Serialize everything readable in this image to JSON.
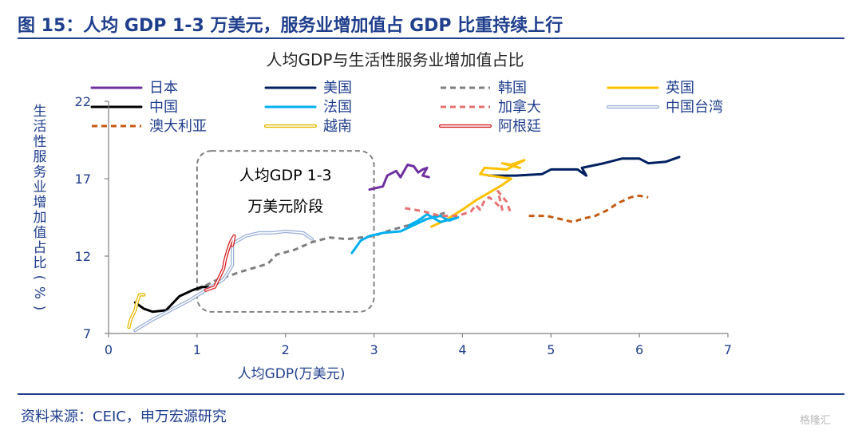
{
  "figure": {
    "title": "图 15：人均 GDP 1-3 万美元，服务业增加值占 GDP 比重持续上行",
    "source": "资料来源：CEIC，申万宏源研究",
    "watermark": "格隆汇"
  },
  "colors": {
    "header_blue": "#1f3e8c",
    "axis_text": "#1f3e8c",
    "box_border": "#808080"
  },
  "chart_data": {
    "type": "line",
    "title": "人均GDP与生活性服务业增加值占比",
    "xlabel": "人均GDP(万美元)",
    "ylabel": "生活性服务业增加值占比(%)",
    "xlim": [
      0,
      7
    ],
    "ylim": [
      7,
      22
    ],
    "xticks": [
      "0",
      "1",
      "2",
      "3",
      "4",
      "5",
      "6",
      "7"
    ],
    "yticks": [
      "7",
      "12",
      "17",
      "22"
    ],
    "grid": false,
    "legend_position": "top",
    "annotation": {
      "line1": "人均GDP 1-3",
      "line2": "万美元阶段",
      "x_range": [
        1.0,
        3.0
      ],
      "y_range": [
        8.4,
        18.8
      ]
    },
    "series": [
      {
        "name": "日本",
        "color": "#7030a0",
        "style": "solid",
        "points": [
          [
            2.95,
            16.3
          ],
          [
            3.1,
            16.5
          ],
          [
            3.15,
            17.2
          ],
          [
            3.25,
            17.5
          ],
          [
            3.3,
            17.1
          ],
          [
            3.38,
            17.9
          ],
          [
            3.45,
            17.8
          ],
          [
            3.5,
            17.4
          ],
          [
            3.55,
            17.6
          ],
          [
            3.6,
            17.7
          ],
          [
            3.55,
            17.2
          ],
          [
            3.62,
            17.1
          ]
        ]
      },
      {
        "name": "美国",
        "color": "#002060",
        "style": "solid",
        "points": [
          [
            4.3,
            17.2
          ],
          [
            4.6,
            17.2
          ],
          [
            4.9,
            17.3
          ],
          [
            5.0,
            17.6
          ],
          [
            5.3,
            17.6
          ],
          [
            5.4,
            17.2
          ],
          [
            5.35,
            17.7
          ],
          [
            5.6,
            18.0
          ],
          [
            5.8,
            18.3
          ],
          [
            6.0,
            18.3
          ],
          [
            6.1,
            18.0
          ],
          [
            6.3,
            18.1
          ],
          [
            6.45,
            18.4
          ]
        ]
      },
      {
        "name": "韩国",
        "color": "#7f7f7f",
        "style": "dash",
        "points": [
          [
            1.0,
            9.8
          ],
          [
            1.2,
            10.4
          ],
          [
            1.5,
            11.0
          ],
          [
            1.8,
            11.5
          ],
          [
            1.9,
            12.1
          ],
          [
            2.1,
            12.4
          ],
          [
            2.3,
            12.9
          ],
          [
            2.5,
            13.2
          ],
          [
            2.7,
            13.1
          ],
          [
            3.0,
            13.3
          ],
          [
            3.2,
            13.7
          ],
          [
            3.4,
            14.0
          ],
          [
            3.6,
            14.4
          ],
          [
            3.8,
            14.8
          ]
        ]
      },
      {
        "name": "英国",
        "color": "#ffc000",
        "style": "solid",
        "points": [
          [
            3.65,
            13.9
          ],
          [
            3.8,
            14.3
          ],
          [
            4.0,
            15.0
          ],
          [
            4.15,
            15.6
          ],
          [
            4.3,
            16.1
          ],
          [
            4.45,
            16.6
          ],
          [
            4.55,
            17.0
          ],
          [
            4.2,
            17.3
          ],
          [
            4.25,
            17.7
          ],
          [
            4.5,
            17.6
          ],
          [
            4.7,
            18.2
          ],
          [
            4.55,
            17.9
          ],
          [
            4.45,
            18.0
          ],
          [
            4.65,
            17.7
          ]
        ]
      },
      {
        "name": "中国",
        "color": "#000000",
        "style": "solid",
        "points": [
          [
            0.3,
            9.0
          ],
          [
            0.4,
            8.6
          ],
          [
            0.5,
            8.4
          ],
          [
            0.65,
            8.5
          ],
          [
            0.8,
            9.4
          ],
          [
            0.95,
            9.8
          ],
          [
            1.05,
            10.0
          ],
          [
            1.2,
            10.0
          ]
        ]
      },
      {
        "name": "法国",
        "color": "#00b0f0",
        "style": "solid",
        "points": [
          [
            2.75,
            12.2
          ],
          [
            2.85,
            13.0
          ],
          [
            2.95,
            13.3
          ],
          [
            3.1,
            13.5
          ],
          [
            3.3,
            13.6
          ],
          [
            3.45,
            14.0
          ],
          [
            3.6,
            14.4
          ],
          [
            3.75,
            14.6
          ],
          [
            3.85,
            14.3
          ],
          [
            3.95,
            14.5
          ],
          [
            3.75,
            14.2
          ],
          [
            3.6,
            14.7
          ],
          [
            3.5,
            14.3
          ],
          [
            3.4,
            14.0
          ]
        ]
      },
      {
        "name": "加拿大",
        "color": "#e87272",
        "style": "dash",
        "points": [
          [
            3.35,
            15.1
          ],
          [
            3.55,
            14.9
          ],
          [
            3.75,
            14.6
          ],
          [
            3.95,
            14.6
          ],
          [
            4.1,
            14.9
          ],
          [
            4.15,
            15.3
          ],
          [
            4.2,
            15.0
          ],
          [
            4.25,
            15.6
          ],
          [
            4.3,
            15.8
          ],
          [
            4.35,
            15.6
          ],
          [
            4.45,
            15.0
          ],
          [
            4.4,
            16.2
          ],
          [
            4.5,
            15.5
          ],
          [
            4.55,
            14.7
          ]
        ]
      },
      {
        "name": "中国台湾",
        "color": "#9bb1d6",
        "style": "double",
        "points": [
          [
            0.3,
            7.2
          ],
          [
            0.5,
            7.9
          ],
          [
            0.7,
            8.5
          ],
          [
            0.9,
            9.1
          ],
          [
            1.1,
            9.8
          ],
          [
            1.3,
            10.5
          ],
          [
            1.4,
            11.4
          ],
          [
            1.4,
            12.8
          ],
          [
            1.55,
            13.3
          ],
          [
            1.7,
            13.5
          ],
          [
            1.85,
            13.5
          ],
          [
            2.0,
            13.6
          ],
          [
            2.2,
            13.5
          ],
          [
            2.3,
            13.1
          ]
        ]
      },
      {
        "name": "澳大利亚",
        "color": "#c55a11",
        "style": "dash",
        "points": [
          [
            4.75,
            14.6
          ],
          [
            4.95,
            14.6
          ],
          [
            5.1,
            14.4
          ],
          [
            5.25,
            14.2
          ],
          [
            5.35,
            14.4
          ],
          [
            5.5,
            14.6
          ],
          [
            5.65,
            15.0
          ],
          [
            5.75,
            15.4
          ],
          [
            5.9,
            15.8
          ],
          [
            6.0,
            15.9
          ],
          [
            6.1,
            15.8
          ]
        ]
      },
      {
        "name": "越南",
        "color": "#e6b800",
        "style": "double",
        "points": [
          [
            0.23,
            7.4
          ],
          [
            0.25,
            7.9
          ],
          [
            0.3,
            8.5
          ],
          [
            0.32,
            9.0
          ],
          [
            0.35,
            9.5
          ],
          [
            0.4,
            9.5
          ]
        ]
      },
      {
        "name": "阿根廷",
        "color": "#d62020",
        "style": "double",
        "points": [
          [
            1.1,
            9.8
          ],
          [
            1.2,
            10.0
          ],
          [
            1.25,
            10.6
          ],
          [
            1.3,
            11.2
          ],
          [
            1.32,
            11.8
          ],
          [
            1.35,
            12.4
          ],
          [
            1.38,
            12.9
          ],
          [
            1.42,
            13.3
          ],
          [
            1.4,
            12.7
          ]
        ]
      }
    ]
  }
}
